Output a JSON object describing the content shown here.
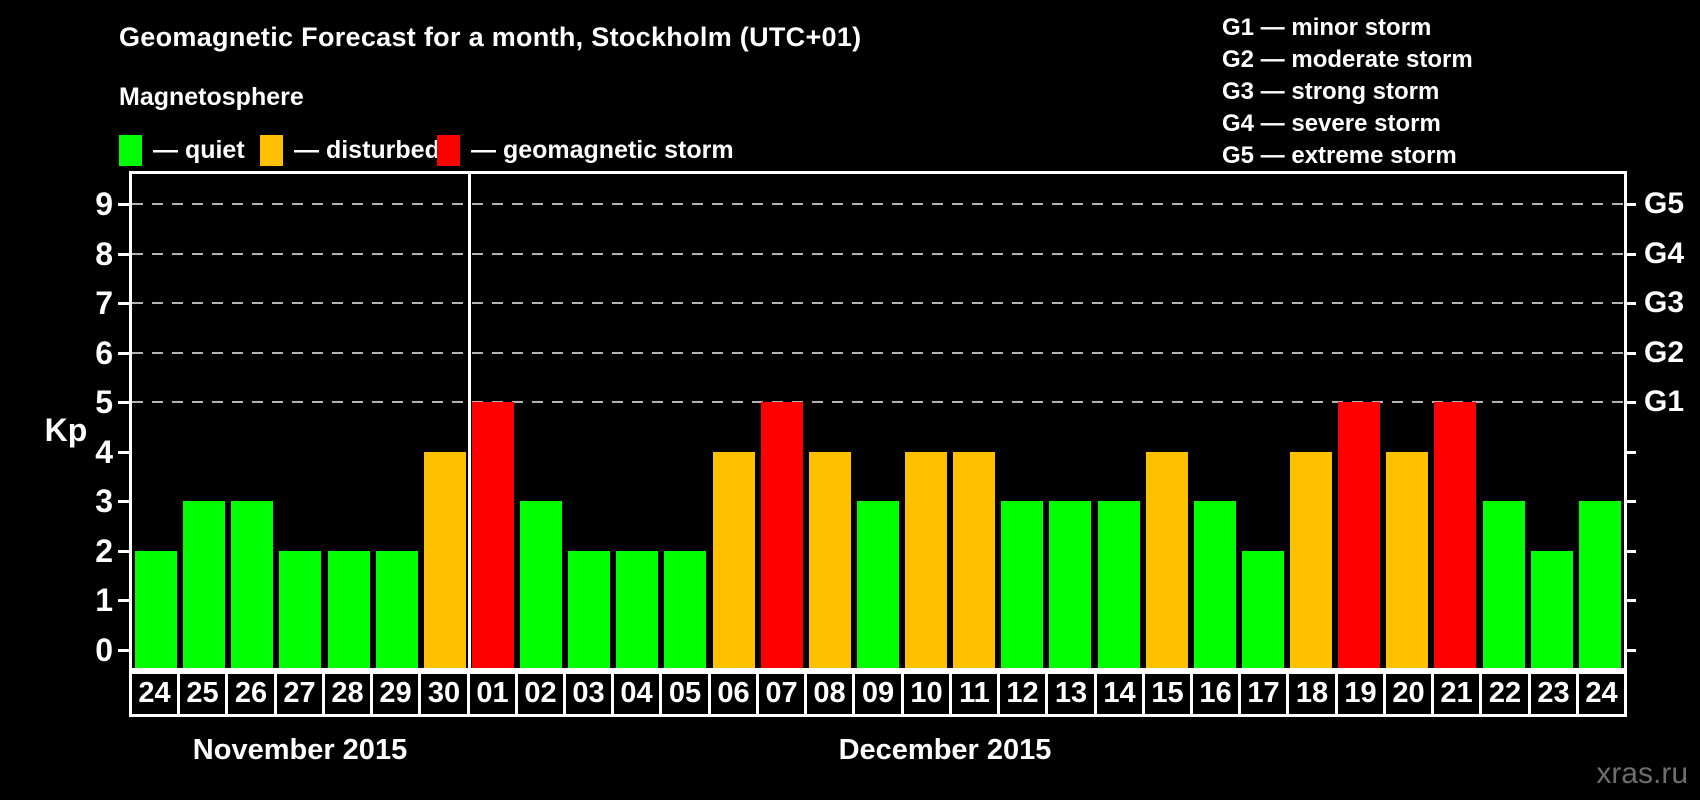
{
  "title": "Geomagnetic Forecast for a month, Stockholm (UTC+01)",
  "watermark": "xras.ru",
  "magnetosphere_legend": {
    "heading": "Magnetosphere",
    "items": [
      {
        "status": "quiet",
        "label": "— quiet",
        "color": "#00ff00"
      },
      {
        "status": "disturbed",
        "label": "— disturbed",
        "color": "#ffc000"
      },
      {
        "status": "storm",
        "label": "— geomagnetic storm",
        "color": "#ff0000"
      }
    ]
  },
  "storm_scale_legend": {
    "items": [
      "G1 — minor storm",
      "G2 — moderate storm",
      "G3 — strong storm",
      "G4 — severe storm",
      "G5 — extreme storm"
    ]
  },
  "y_axis": {
    "label": "Kp",
    "ticks": [
      0,
      1,
      2,
      3,
      4,
      5,
      6,
      7,
      8,
      9
    ]
  },
  "right_axis": {
    "labels": [
      {
        "kp": 5,
        "label": "G1"
      },
      {
        "kp": 6,
        "label": "G2"
      },
      {
        "kp": 7,
        "label": "G3"
      },
      {
        "kp": 8,
        "label": "G4"
      },
      {
        "kp": 9,
        "label": "G5"
      }
    ]
  },
  "x_axis": {
    "months": [
      {
        "label": "November 2015",
        "days": [
          "24",
          "25",
          "26",
          "27",
          "28",
          "29",
          "30"
        ]
      },
      {
        "label": "December 2015",
        "days": [
          "01",
          "02",
          "03",
          "04",
          "05",
          "06",
          "07",
          "08",
          "09",
          "10",
          "11",
          "12",
          "13",
          "14",
          "15",
          "16",
          "17",
          "18",
          "19",
          "20",
          "21",
          "22",
          "23",
          "24"
        ]
      }
    ]
  },
  "chart_data": {
    "type": "bar",
    "title": "Geomagnetic Forecast for a month, Stockholm (UTC+01)",
    "xlabel": "",
    "ylabel": "Kp",
    "ylim": [
      0,
      9
    ],
    "grid": "dashed horizontal at Kp 5-9 only",
    "gridlines_at_kp": [
      5,
      6,
      7,
      8,
      9
    ],
    "legend_position": "top-left and top-right",
    "categories": [
      "Nov 24",
      "Nov 25",
      "Nov 26",
      "Nov 27",
      "Nov 28",
      "Nov 29",
      "Nov 30",
      "Dec 01",
      "Dec 02",
      "Dec 03",
      "Dec 04",
      "Dec 05",
      "Dec 06",
      "Dec 07",
      "Dec 08",
      "Dec 09",
      "Dec 10",
      "Dec 11",
      "Dec 12",
      "Dec 13",
      "Dec 14",
      "Dec 15",
      "Dec 16",
      "Dec 17",
      "Dec 18",
      "Dec 19",
      "Dec 20",
      "Dec 21",
      "Dec 22",
      "Dec 23",
      "Dec 24"
    ],
    "values": [
      2,
      3,
      3,
      2,
      2,
      2,
      4,
      5,
      3,
      2,
      2,
      2,
      4,
      5,
      4,
      3,
      4,
      4,
      3,
      3,
      3,
      4,
      3,
      2,
      4,
      5,
      4,
      5,
      3,
      2,
      3
    ],
    "statuses": [
      "quiet",
      "quiet",
      "quiet",
      "quiet",
      "quiet",
      "quiet",
      "disturbed",
      "storm",
      "quiet",
      "quiet",
      "quiet",
      "quiet",
      "disturbed",
      "storm",
      "disturbed",
      "quiet",
      "disturbed",
      "disturbed",
      "quiet",
      "quiet",
      "quiet",
      "disturbed",
      "quiet",
      "quiet",
      "disturbed",
      "storm",
      "disturbed",
      "storm",
      "quiet",
      "quiet",
      "quiet"
    ],
    "status_colors": {
      "quiet": "#00ff00",
      "disturbed": "#ffc000",
      "storm": "#ff0000"
    },
    "kp_to_g": {
      "5": "G1",
      "6": "G2",
      "7": "G3",
      "8": "G4",
      "9": "G5"
    }
  }
}
